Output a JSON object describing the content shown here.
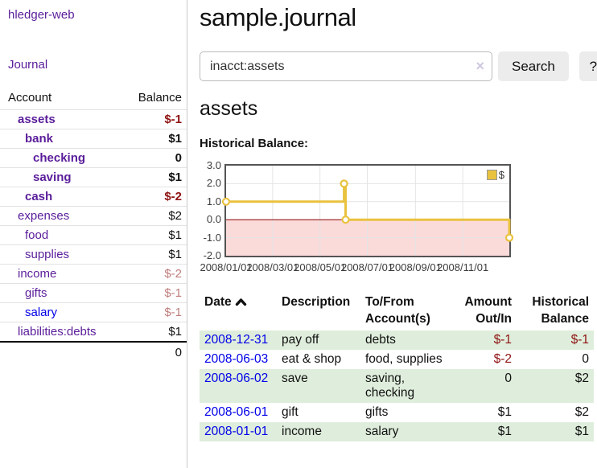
{
  "colors": {
    "link_purple": "#5a1d9a",
    "link_blue": "#0000e8",
    "negative_strong": "#8f1313",
    "negative_muted": "#c17d7d",
    "row_green": "#dfeedc",
    "chart_line": "#e9c23f",
    "chart_negative_fill": "#fbdada",
    "chart_zero_line": "#8b0000",
    "chart_border": "#545454"
  },
  "sidebar": {
    "app_title": "hledger-web",
    "journal_link": "Journal",
    "account_header": "Account",
    "balance_header": "Balance",
    "accounts": [
      {
        "label": "assets",
        "indent": 1,
        "bold": true,
        "link_color": "purple",
        "balance": "$-1",
        "negative": "strong"
      },
      {
        "label": "bank",
        "indent": 2,
        "bold": true,
        "link_color": "purple",
        "balance": "$1",
        "negative": null
      },
      {
        "label": "checking",
        "indent": 3,
        "bold": true,
        "link_color": "purple",
        "balance": "0",
        "negative": null
      },
      {
        "label": "saving",
        "indent": 3,
        "bold": true,
        "link_color": "purple",
        "balance": "$1",
        "negative": null
      },
      {
        "label": "cash",
        "indent": 2,
        "bold": true,
        "link_color": "purple",
        "balance": "$-2",
        "negative": "strong"
      },
      {
        "label": "expenses",
        "indent": 1,
        "bold": false,
        "link_color": "purple",
        "balance": "$2",
        "negative": null
      },
      {
        "label": "food",
        "indent": 2,
        "bold": false,
        "link_color": "purple",
        "balance": "$1",
        "negative": null
      },
      {
        "label": "supplies",
        "indent": 2,
        "bold": false,
        "link_color": "purple",
        "balance": "$1",
        "negative": null
      },
      {
        "label": "income",
        "indent": 1,
        "bold": false,
        "link_color": "purple",
        "balance": "$-2",
        "negative": "muted"
      },
      {
        "label": "gifts",
        "indent": 2,
        "bold": false,
        "link_color": "purple",
        "balance": "$-1",
        "negative": "muted"
      },
      {
        "label": "salary",
        "indent": 2,
        "bold": false,
        "link_color": "blue",
        "balance": "$-1",
        "negative": "muted"
      },
      {
        "label": "liabilities:debts",
        "indent": 1,
        "bold": false,
        "link_color": "purple",
        "balance": "$1",
        "negative": null
      }
    ],
    "total": "0"
  },
  "main": {
    "title": "sample.journal",
    "search": {
      "value": "inacct:assets",
      "clear_icon": "×",
      "search_button": "Search",
      "help_button": "?"
    },
    "account_heading": "assets",
    "chart_title": "Historical Balance:"
  },
  "chart_data": {
    "type": "line",
    "step": true,
    "title": "Historical Balance:",
    "legend_label": "$",
    "legend_position": "top-right",
    "grid": true,
    "xlim": [
      "2008-01-01",
      "2008-12-31"
    ],
    "ylim": [
      -2,
      3
    ],
    "points": [
      {
        "x": "2008-01-01",
        "y": 1
      },
      {
        "x": "2008-06-01",
        "y": 2
      },
      {
        "x": "2008-06-03",
        "y": 0
      },
      {
        "x": "2008-12-31",
        "y": -1
      }
    ],
    "yticks": [
      {
        "value": 3,
        "label": "3.0"
      },
      {
        "value": 2,
        "label": "2.0"
      },
      {
        "value": 1,
        "label": "1.0"
      },
      {
        "value": 0,
        "label": "0.0"
      },
      {
        "value": -1,
        "label": "-1.0"
      },
      {
        "value": -2,
        "label": "-2.0"
      }
    ],
    "xticks": [
      {
        "date": "2008-01-01",
        "label": "2008/01/01"
      },
      {
        "date": "2008-03-01",
        "label": "2008/03/01"
      },
      {
        "date": "2008-05-01",
        "label": "2008/05/01"
      },
      {
        "date": "2008-07-01",
        "label": "2008/07/01"
      },
      {
        "date": "2008-09-01",
        "label": "2008/09/01"
      },
      {
        "date": "2008-11-01",
        "label": "2008/11/01"
      }
    ]
  },
  "register": {
    "columns": [
      {
        "label": "Date",
        "align": "left",
        "sorted_asc": true
      },
      {
        "label": "Description",
        "align": "left"
      },
      {
        "label": "To/From Account(s)",
        "align": "left"
      },
      {
        "label": "Amount Out/In",
        "align": "right"
      },
      {
        "label": "Historical Balance",
        "align": "right"
      }
    ],
    "rows": [
      {
        "date": "2008-12-31",
        "description": "pay off",
        "accounts": "debts",
        "amount": "$-1",
        "amount_negative": true,
        "balance": "$-1",
        "balance_negative": true
      },
      {
        "date": "2008-06-03",
        "description": "eat & shop",
        "accounts": "food, supplies",
        "amount": "$-2",
        "amount_negative": true,
        "balance": "0",
        "balance_negative": false
      },
      {
        "date": "2008-06-02",
        "description": "save",
        "accounts": "saving, checking",
        "amount": "0",
        "amount_negative": false,
        "balance": "$2",
        "balance_negative": false
      },
      {
        "date": "2008-06-01",
        "description": "gift",
        "accounts": "gifts",
        "amount": "$1",
        "amount_negative": false,
        "balance": "$2",
        "balance_negative": false
      },
      {
        "date": "2008-01-01",
        "description": "income",
        "accounts": "salary",
        "amount": "$1",
        "amount_negative": false,
        "balance": "$1",
        "balance_negative": false
      }
    ]
  }
}
